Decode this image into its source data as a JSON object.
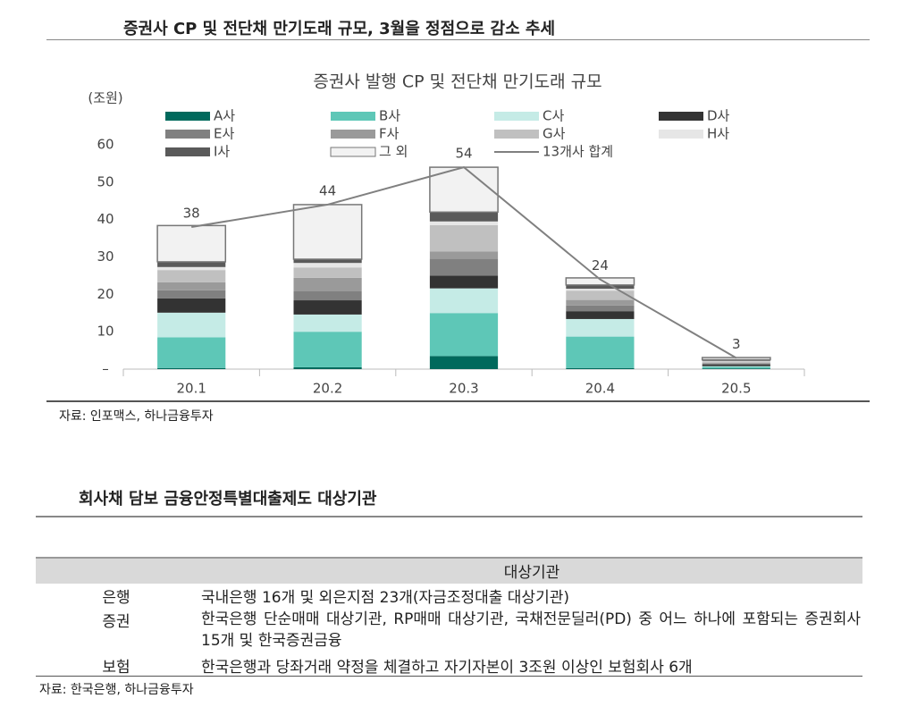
{
  "section1": {
    "title": "증권사 CP 및 전단채 만기도래 규모, 3월을 정점으로 감소 추세",
    "source": "자료: 인포맥스, 하나금융투자"
  },
  "chart_data": {
    "type": "stacked-bar",
    "title": "증권사 발행 CP 및 전단채 만기도래 규모",
    "y_label": "(조원)",
    "categories": [
      "20.1",
      "20.2",
      "20.3",
      "20.4",
      "20.5"
    ],
    "ylim": [
      0,
      60
    ],
    "yticks": [
      {
        "value": 0,
        "label": "–"
      },
      10,
      20,
      30,
      40,
      50,
      60
    ],
    "series": [
      {
        "name": "A사",
        "color": "#00695c",
        "values": [
          0.3,
          0.5,
          3.5,
          0.3,
          0.2
        ]
      },
      {
        "name": "B사",
        "color": "#5ec7b7",
        "values": [
          8.2,
          9.5,
          11.5,
          8.4,
          0.4
        ]
      },
      {
        "name": "C사",
        "color": "#c5ebe6",
        "values": [
          6.6,
          4.6,
          6.6,
          4.7,
          0.2
        ]
      },
      {
        "name": "D사",
        "color": "#333333",
        "values": [
          3.8,
          3.8,
          3.4,
          2.1,
          0.4
        ]
      },
      {
        "name": "E사",
        "color": "#808080",
        "values": [
          2.2,
          2.4,
          4.5,
          1.5,
          0.3
        ]
      },
      {
        "name": "F사",
        "color": "#9a9a9a",
        "values": [
          2.1,
          3.6,
          2.0,
          1.5,
          0.2
        ]
      },
      {
        "name": "G사",
        "color": "#c0c0c0",
        "values": [
          3.3,
          2.8,
          7.0,
          2.5,
          0.4
        ]
      },
      {
        "name": "H사",
        "color": "#e6e6e6",
        "values": [
          0.8,
          1.2,
          1.0,
          0.5,
          0.1
        ]
      },
      {
        "name": "I사",
        "color": "#5a5a5a",
        "values": [
          1.4,
          1.0,
          2.5,
          1.0,
          0.3
        ]
      },
      {
        "name": "그 외",
        "color": "#f2f2f2",
        "values": [
          9.7,
          14.6,
          12.0,
          1.9,
          0.6
        ]
      }
    ],
    "line_series": {
      "name": "13개사 합계",
      "color": "#808080",
      "values": [
        38,
        44,
        54,
        24,
        3
      ]
    }
  },
  "section2": {
    "title": "회사채 담보 금융안정특별대출제도 대상기관",
    "source": "자료: 한국은행, 하나금융투자",
    "table": {
      "header": "대상기관",
      "rows": [
        [
          "은행",
          "국내은행 16개 및 외은지점 23개(자금조정대출 대상기관)"
        ],
        [
          "증권",
          "한국은행 단순매매 대상기관, RP매매 대상기관, 국채전문딜러(PD) 중 어느 하나에 포함되는 증권회사 15개 및 한국증권금융"
        ],
        [
          "보험",
          "한국은행과 당좌거래 약정을 체결하고 자기자본이 3조원 이상인 보험회사 6개"
        ]
      ]
    }
  }
}
